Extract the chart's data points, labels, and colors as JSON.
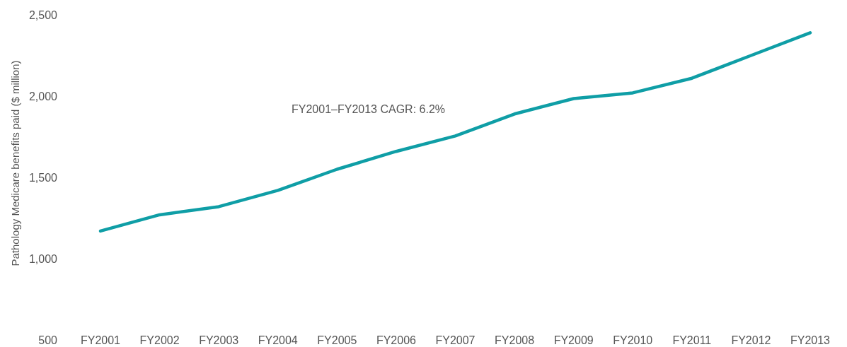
{
  "chart_data": {
    "type": "line",
    "ylabel": "Pathology Medicare benefits paid ($ million)",
    "categories": [
      "FY2001",
      "FY2002",
      "FY2003",
      "FY2004",
      "FY2005",
      "FY2006",
      "FY2007",
      "FY2008",
      "FY2009",
      "FY2010",
      "FY2011",
      "FY2012",
      "FY2013"
    ],
    "series": [
      {
        "color": "#0f9ea6",
        "values": [
          1170,
          1270,
          1320,
          1420,
          1550,
          1660,
          1755,
          1890,
          1985,
          2020,
          2110,
          2250,
          2390
        ]
      }
    ],
    "ylim": [
      500,
      2500
    ],
    "yticks": [
      {
        "value": 500,
        "label": "500"
      },
      {
        "value": 1000,
        "label": "1,000"
      },
      {
        "value": 1500,
        "label": "1,500"
      },
      {
        "value": 2000,
        "label": "2,000"
      },
      {
        "value": 2500,
        "label": "2,500"
      }
    ],
    "annotations": [
      "FY2001–FY2013 CAGR: 6.2%"
    ],
    "grid": false,
    "marker": "none",
    "line_style": "solid"
  }
}
